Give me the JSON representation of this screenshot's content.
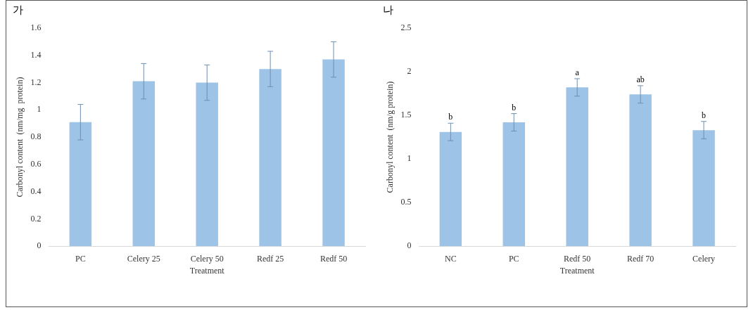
{
  "chart_data": [
    {
      "type": "bar",
      "title": "가",
      "categories": [
        "PC",
        "Celery 25",
        "Celery 50",
        "Redf 25",
        "Redf 50"
      ],
      "values": [
        0.91,
        1.21,
        1.2,
        1.3,
        1.37
      ],
      "errors": [
        0.13,
        0.13,
        0.13,
        0.13,
        0.13
      ],
      "color": "#9dc3e6",
      "x_label": "Treatment",
      "y_label": "Carbonyl content  (nm/mg  protein)",
      "ylim": [
        0,
        1.6
      ],
      "yticks": [
        0,
        0.2,
        0.4,
        0.6,
        0.8,
        1,
        1.2,
        1.4,
        1.6
      ],
      "grid": false
    },
    {
      "type": "bar",
      "title": "나",
      "categories": [
        "NC",
        "PC",
        "Redf 50",
        "Redf 70",
        "Celery"
      ],
      "values": [
        1.31,
        1.42,
        1.82,
        1.74,
        1.33
      ],
      "errors": [
        0.1,
        0.1,
        0.1,
        0.1,
        0.1
      ],
      "annotations": [
        "b",
        "b",
        "a",
        "ab",
        "b"
      ],
      "color": "#9dc3e6",
      "x_label": "Treatment",
      "y_label": "Carbonyl content  (nm/g protein)",
      "ylim": [
        0,
        2.5
      ],
      "yticks": [
        0,
        0.5,
        1,
        1.5,
        2,
        2.5
      ],
      "grid": false
    }
  ]
}
